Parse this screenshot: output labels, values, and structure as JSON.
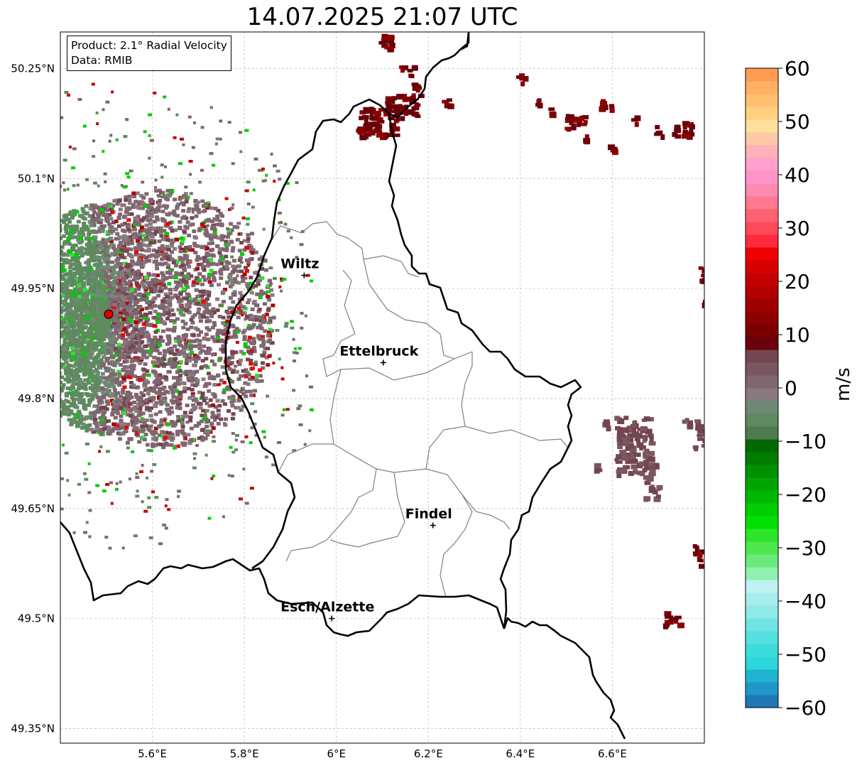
{
  "title": "14.07.2025 21:07 UTC",
  "info": {
    "product": "Product: 2.1° Radial Velocity",
    "data": "Data: RMIB"
  },
  "axes": {
    "lon_range": [
      5.4,
      6.8
    ],
    "lat_range": [
      49.33,
      50.3
    ],
    "x_ticks": [
      {
        "value": 5.6,
        "label": "5.6°E"
      },
      {
        "value": 5.8,
        "label": "5.8°E"
      },
      {
        "value": 6.0,
        "label": "6°E"
      },
      {
        "value": 6.2,
        "label": "6.2°E"
      },
      {
        "value": 6.4,
        "label": "6.4°E"
      },
      {
        "value": 6.6,
        "label": "6.6°E"
      }
    ],
    "y_ticks": [
      {
        "value": 50.25,
        "label": "50.25°N"
      },
      {
        "value": 50.1,
        "label": "50.1°N"
      },
      {
        "value": 49.95,
        "label": "49.95°N"
      },
      {
        "value": 49.8,
        "label": "49.8°N"
      },
      {
        "value": 49.65,
        "label": "49.65°N"
      },
      {
        "value": 49.5,
        "label": "49.5°N"
      },
      {
        "value": 49.35,
        "label": "49.35°N"
      }
    ],
    "gridlines": true
  },
  "cities": [
    {
      "name": "Wiltz",
      "lon": 5.93,
      "lat": 49.968
    },
    {
      "name": "Ettelbruck",
      "lon": 6.102,
      "lat": 49.849
    },
    {
      "name": "Findel",
      "lon": 6.21,
      "lat": 49.627
    },
    {
      "name": "Esch/Alzette",
      "lon": 5.99,
      "lat": 49.5
    }
  ],
  "radar": {
    "lon": 5.505,
    "lat": 49.915,
    "color": "#e00000"
  },
  "colorbar": {
    "label": "m/s",
    "min": -60,
    "max": 60,
    "ticks": [
      {
        "value": 60,
        "label": "60"
      },
      {
        "value": 50,
        "label": "50"
      },
      {
        "value": 40,
        "label": "40"
      },
      {
        "value": 30,
        "label": "30"
      },
      {
        "value": 20,
        "label": "20"
      },
      {
        "value": 10,
        "label": "10"
      },
      {
        "value": 0,
        "label": "0"
      },
      {
        "value": -10,
        "label": "−10"
      },
      {
        "value": -20,
        "label": "−20"
      },
      {
        "value": -30,
        "label": "−30"
      },
      {
        "value": -40,
        "label": "−40"
      },
      {
        "value": -50,
        "label": "−50"
      },
      {
        "value": -60,
        "label": "−60"
      }
    ],
    "colors": [
      "#1f77b4",
      "#2196c8",
      "#21b4d2",
      "#2cd6dc",
      "#3ddcdc",
      "#55e0e0",
      "#70e4e4",
      "#8ee9e9",
      "#a6eded",
      "#bff2f2",
      "#8ff0b0",
      "#6ae97c",
      "#4ee74e",
      "#2be52b",
      "#00e000",
      "#00cc00",
      "#00b800",
      "#00a400",
      "#009000",
      "#007c00",
      "#006800",
      "#4f7a4f",
      "#5e8a5e",
      "#6e8a74",
      "#887a7e",
      "#7f6670",
      "#7a5660",
      "#73454f",
      "#6a000a",
      "#7a0000",
      "#8c0000",
      "#9e0000",
      "#b00000",
      "#c40000",
      "#d80000",
      "#ee0000",
      "#ff2a3c",
      "#ff4a5a",
      "#ff6272",
      "#ff7890",
      "#ff8ab0",
      "#ff94c8",
      "#ffa0cf",
      "#ffb0b8",
      "#ffc8a8",
      "#ffe09a",
      "#ffd080",
      "#ffc070",
      "#ffb060",
      "#ff9c52"
    ]
  }
}
